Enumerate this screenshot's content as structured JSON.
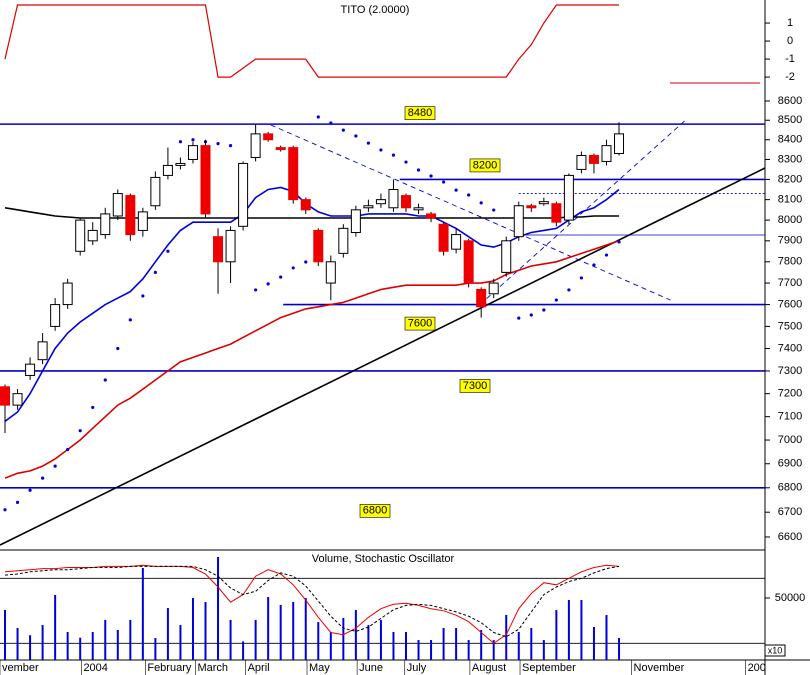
{
  "chart_data": [
    {
      "type": "line",
      "title": "TITO (2.0000)",
      "xlim": [
        -0.4,
        60.65
      ],
      "ylim": [
        -2.44,
        2.28
      ],
      "yticks": [
        1,
        0,
        -1,
        -2
      ],
      "series": [
        {
          "color": "#dd0000",
          "values": [
            -1,
            2,
            2,
            2,
            2,
            2,
            2,
            2,
            2,
            2,
            2,
            2,
            2,
            2,
            2,
            2,
            2,
            -2,
            -2,
            -1.5,
            -1,
            -1,
            -1,
            -1,
            -1,
            -2,
            -2,
            -2,
            -2,
            -2,
            -2,
            -2,
            -2,
            -2,
            -2,
            -2,
            -2,
            -2,
            -2,
            -2,
            -2,
            -1,
            -0.2,
            1,
            2,
            2,
            2,
            2,
            2,
            2
          ]
        }
      ]
    },
    {
      "type": "candlestick",
      "log_scale": true,
      "xlim": [
        -0.4,
        60.65
      ],
      "ylim": [
        6548,
        8668
      ],
      "yticks": [
        6600,
        6700,
        6800,
        6900,
        7000,
        7100,
        7200,
        7300,
        7400,
        7500,
        7600,
        7700,
        7800,
        7900,
        8000,
        8100,
        8200,
        8300,
        8400,
        8500,
        8600
      ],
      "up_color": "#ffffff",
      "down_color": "#ee0000",
      "open": [
        7230,
        7150,
        7280,
        7350,
        7500,
        7600,
        7850,
        7900,
        7930,
        8020,
        8120,
        7950,
        8070,
        8220,
        8270,
        8300,
        8370,
        7920,
        7800,
        7970,
        8310,
        8430,
        8360,
        8360,
        8100,
        7950,
        7700,
        7840,
        7940,
        8060,
        8080,
        8060,
        8120,
        8050,
        8030,
        7980,
        7860,
        7900,
        7670,
        7650,
        7750,
        7920,
        8070,
        8080,
        8080,
        8000,
        8250,
        8320,
        8290,
        8330
      ],
      "high": [
        7240,
        7220,
        7360,
        7470,
        7630,
        7720,
        8010,
        7990,
        8060,
        8150,
        8130,
        8060,
        8240,
        8360,
        8310,
        8390,
        8400,
        7960,
        7970,
        8290,
        8480,
        8440,
        8370,
        8370,
        8110,
        7960,
        7830,
        7980,
        8070,
        8100,
        8130,
        8200,
        8130,
        8080,
        8040,
        7990,
        7960,
        7910,
        7680,
        7720,
        7920,
        8090,
        8080,
        8110,
        8090,
        8230,
        8340,
        8330,
        8400,
        8490
      ],
      "low": [
        7030,
        7130,
        7260,
        7330,
        7480,
        7580,
        7830,
        7880,
        7910,
        8000,
        7900,
        7920,
        8050,
        8200,
        8250,
        8280,
        8010,
        7650,
        7700,
        7950,
        8290,
        8390,
        8340,
        8080,
        8030,
        7780,
        7620,
        7820,
        7920,
        8040,
        8060,
        8040,
        8040,
        8030,
        7990,
        7830,
        7840,
        7680,
        7540,
        7630,
        7730,
        7900,
        8040,
        8070,
        7970,
        7980,
        8230,
        8230,
        8270,
        8320
      ],
      "close": [
        7150,
        7200,
        7330,
        7430,
        7600,
        7700,
        8000,
        7950,
        8030,
        8130,
        7930,
        8040,
        8210,
        8270,
        8280,
        8370,
        8030,
        7800,
        7950,
        8280,
        8430,
        8400,
        8350,
        8100,
        8050,
        7800,
        7800,
        7960,
        8050,
        8070,
        8100,
        8150,
        8060,
        8060,
        8010,
        7850,
        7930,
        7700,
        7590,
        7700,
        7900,
        8070,
        8060,
        8090,
        7990,
        8220,
        8320,
        8280,
        8370,
        8430
      ],
      "lines": [
        {
          "color": "#0000dd",
          "values": [
            7080,
            7120,
            7200,
            7300,
            7400,
            7470,
            7520,
            7560,
            7600,
            7630,
            7660,
            7720,
            7800,
            7880,
            7950,
            7990,
            7990,
            7990,
            7990,
            8030,
            8110,
            8150,
            8160,
            8140,
            8080,
            8040,
            8020,
            8020,
            8020,
            8030,
            8030,
            8030,
            8030,
            8020,
            8020,
            7990,
            7960,
            7920,
            7880,
            7870,
            7890,
            7920,
            7940,
            7950,
            7960,
            8000,
            8040,
            8060,
            8100,
            8150
          ]
        },
        {
          "color": "#dd0000",
          "values": [
            6840,
            6860,
            6870,
            6890,
            6920,
            6960,
            7000,
            7050,
            7100,
            7150,
            7180,
            7220,
            7260,
            7300,
            7340,
            7360,
            7380,
            7400,
            7420,
            7450,
            7480,
            7510,
            7540,
            7560,
            7580,
            7590,
            7600,
            7610,
            7630,
            7650,
            7670,
            7680,
            7690,
            7690,
            7690,
            7690,
            7690,
            7700,
            7700,
            7710,
            7740,
            7760,
            7780,
            7790,
            7800,
            7820,
            7840,
            7860,
            7880,
            7900
          ]
        },
        {
          "color": "#000000",
          "values": [
            8060,
            8050,
            8040,
            8030,
            8020,
            8015,
            8010,
            8010,
            8010,
            8010,
            8010,
            8010,
            8010,
            8010,
            8010,
            8010,
            8010,
            8010,
            8010,
            8010,
            8010,
            8010,
            8010,
            8010,
            8010,
            8010,
            8010,
            8010,
            8010,
            8010,
            8010,
            8010,
            8010,
            8010,
            8010,
            8010,
            8010,
            8010,
            8010,
            8010,
            8010,
            8010,
            8010,
            8010,
            8010,
            8015,
            8015,
            8020,
            8020,
            8020
          ]
        }
      ],
      "dots": {
        "color": "#0000dd",
        "values": [
          6710,
          6740,
          6790,
          6840,
          6890,
          6960,
          7040,
          7140,
          7260,
          7400,
          7530,
          7640,
          7750,
          7850,
          8390,
          8400,
          8390,
          8380,
          8370,
          null,
          7668,
          7696,
          7728,
          7771,
          7799,
          8517,
          8486,
          8449,
          8419,
          8383,
          8348,
          8322,
          8287,
          8247,
          8217,
          8187,
          8147,
          8123,
          8084,
          8049,
          null,
          7538,
          7552,
          7575,
          7621,
          7668,
          7724,
          7785,
          7832,
          7895
        ]
      },
      "levels": [
        {
          "value": 8480
        },
        {
          "value": 8200,
          "start": 31.5
        },
        {
          "value": 7600,
          "start": 22.2
        },
        {
          "value": 7300
        },
        {
          "value": 6800
        }
      ],
      "guides": [
        {
          "value": 8130,
          "start": 41,
          "dash": true
        },
        {
          "value": 7928,
          "start": 41
        }
      ],
      "trendlines": [
        {
          "from": [
            -0.4,
            6568
          ],
          "to": [
            60.65,
            8257
          ],
          "color": "#000000"
        },
        {
          "from": [
            21.2,
            8476
          ],
          "to": [
            53.1,
            7621
          ],
          "color": "#0000dd",
          "dash": true
        },
        {
          "from": [
            37.9,
            7600
          ],
          "to": [
            54.3,
            8500
          ],
          "color": "#0000dd",
          "dash": true
        }
      ]
    },
    {
      "type": "bar",
      "title": "Volume, Stochastic Oscillator",
      "axis_note": "x10",
      "color": "#0000dd",
      "xlim": [
        -0.4,
        60.65
      ],
      "ylim": [
        0,
        87100
      ],
      "yticks": [
        50000
      ],
      "values": [
        40300,
        25800,
        20000,
        28200,
        52400,
        22600,
        18000,
        22600,
        32300,
        24200,
        32300,
        74200,
        17700,
        41900,
        28200,
        50000,
        46800,
        83100,
        32300,
        15000,
        32300,
        50800,
        44400,
        46800,
        50000,
        30600,
        22600,
        33900,
        40300,
        28200,
        32300,
        22600,
        22600,
        16100,
        16100,
        25800,
        25800,
        16100,
        24200,
        16100,
        36300,
        22600,
        25800,
        16100,
        40300,
        48400,
        48400,
        26600,
        36300,
        17700
      ],
      "stochastic": {
        "ylim": [
          4.6,
          104.3
        ],
        "levels": [
          80,
          20
        ],
        "k": {
          "color": "#ee0000",
          "values": [
            86,
            87,
            88,
            89,
            89,
            90,
            90,
            90,
            91,
            91,
            91,
            92,
            91,
            91,
            91,
            90,
            84,
            72,
            58,
            65,
            82,
            88,
            84,
            74,
            60,
            44,
            30,
            28,
            34,
            44,
            52,
            56,
            57,
            55,
            52,
            50,
            46,
            40,
            30,
            20,
            28,
            52,
            66,
            76,
            74,
            80,
            86,
            90,
            92,
            91
          ]
        },
        "d": {
          "color": "#000000",
          "dash": true,
          "values": [
            83,
            84,
            86,
            87,
            88,
            88,
            89,
            90,
            90,
            90,
            91,
            91,
            91,
            91,
            91,
            91,
            88,
            82,
            71,
            65,
            68,
            78,
            85,
            82,
            73,
            59,
            45,
            34,
            31,
            35,
            43,
            51,
            55,
            56,
            55,
            52,
            49,
            45,
            39,
            30,
            26,
            33,
            49,
            65,
            72,
            77,
            80,
            85,
            89,
            91
          ]
        }
      },
      "xticks": [
        {
          "value": -0.4,
          "label": "vember"
        },
        {
          "value": 6.1,
          "label": "2004"
        },
        {
          "value": 11.2,
          "label": "February"
        },
        {
          "value": 15.2,
          "label": "March"
        },
        {
          "value": 19.2,
          "label": "April"
        },
        {
          "value": 24.1,
          "label": "May"
        },
        {
          "value": 28.1,
          "label": "June"
        },
        {
          "value": 31.9,
          "label": "July"
        },
        {
          "value": 37.1,
          "label": "August"
        },
        {
          "value": 41.1,
          "label": "September"
        },
        {
          "value": 50,
          "label": "November"
        },
        {
          "value": 59.1,
          "label": "200"
        }
      ]
    }
  ]
}
